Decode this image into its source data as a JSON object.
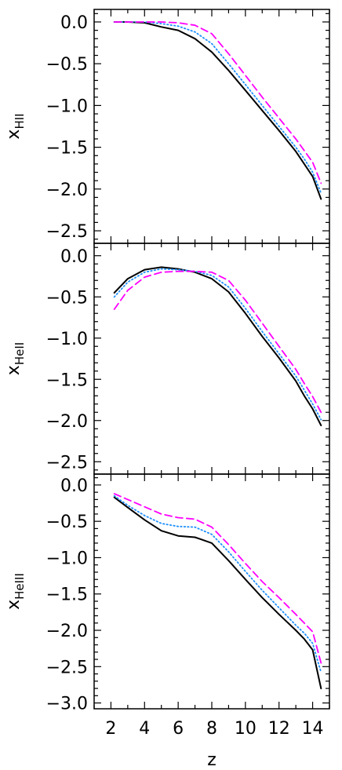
{
  "chart_data": [
    {
      "type": "line",
      "ylabel": "x",
      "ylabel_subscript": "HII",
      "ylim": [
        -2.65,
        0.15
      ],
      "yticks": [
        0.0,
        -0.5,
        -1.0,
        -1.5,
        -2.0,
        -2.5
      ],
      "ytick_labels": [
        "0.0",
        "−0.5",
        "−1.0",
        "−1.5",
        "−2.0",
        "−2.5"
      ],
      "series": [
        {
          "style": "solid",
          "color": "#000000",
          "x": [
            2.2,
            3,
            4,
            5,
            6,
            7,
            8,
            9,
            10,
            11,
            12,
            13,
            13.5,
            14,
            14.5
          ],
          "y": [
            0.0,
            0.0,
            -0.01,
            -0.06,
            -0.1,
            -0.2,
            -0.36,
            -0.58,
            -0.82,
            -1.06,
            -1.3,
            -1.55,
            -1.7,
            -1.85,
            -2.12
          ]
        },
        {
          "style": "dotted",
          "color": "#1e90ff",
          "x": [
            2.2,
            3,
            4,
            5,
            6,
            7,
            8,
            9,
            10,
            11,
            12,
            13,
            13.5,
            14,
            14.5
          ],
          "y": [
            0.0,
            0.0,
            0.0,
            -0.02,
            -0.05,
            -0.12,
            -0.26,
            -0.5,
            -0.75,
            -1.0,
            -1.25,
            -1.5,
            -1.64,
            -1.8,
            -2.05
          ]
        },
        {
          "style": "dashed",
          "color": "#ff00ff",
          "x": [
            2.2,
            3,
            4,
            5,
            6,
            7,
            8,
            9,
            10,
            11,
            12,
            13,
            13.5,
            14,
            14.5
          ],
          "y": [
            0.0,
            0.0,
            0.0,
            0.0,
            -0.01,
            -0.04,
            -0.14,
            -0.38,
            -0.64,
            -0.9,
            -1.15,
            -1.4,
            -1.54,
            -1.68,
            -1.93
          ]
        }
      ]
    },
    {
      "type": "line",
      "ylabel": "x",
      "ylabel_subscript": "HeII",
      "ylim": [
        -2.65,
        0.15
      ],
      "yticks": [
        0.0,
        -0.5,
        -1.0,
        -1.5,
        -2.0,
        -2.5
      ],
      "ytick_labels": [
        "0.0",
        "−0.5",
        "−1.0",
        "−1.5",
        "−2.0",
        "−2.5"
      ],
      "series": [
        {
          "style": "solid",
          "color": "#000000",
          "x": [
            2.2,
            3,
            4,
            5,
            6,
            7,
            8,
            9,
            10,
            11,
            12,
            13,
            13.5,
            14,
            14.5
          ],
          "y": [
            -0.45,
            -0.28,
            -0.17,
            -0.14,
            -0.16,
            -0.2,
            -0.28,
            -0.44,
            -0.7,
            -0.98,
            -1.24,
            -1.52,
            -1.7,
            -1.86,
            -2.06
          ]
        },
        {
          "style": "dotted",
          "color": "#1e90ff",
          "x": [
            2.2,
            3,
            4,
            5,
            6,
            7,
            8,
            9,
            10,
            11,
            12,
            13,
            13.5,
            14,
            14.5
          ],
          "y": [
            -0.5,
            -0.32,
            -0.2,
            -0.16,
            -0.17,
            -0.19,
            -0.24,
            -0.38,
            -0.64,
            -0.92,
            -1.19,
            -1.46,
            -1.63,
            -1.8,
            -1.99
          ]
        },
        {
          "style": "dashed",
          "color": "#ff00ff",
          "x": [
            2.2,
            3,
            4,
            5,
            6,
            7,
            8,
            9,
            10,
            11,
            12,
            13,
            13.5,
            14,
            14.5
          ],
          "y": [
            -0.65,
            -0.42,
            -0.26,
            -0.2,
            -0.19,
            -0.19,
            -0.2,
            -0.3,
            -0.54,
            -0.82,
            -1.1,
            -1.38,
            -1.55,
            -1.71,
            -1.9
          ]
        }
      ]
    },
    {
      "type": "line",
      "xlabel": "z",
      "ylabel": "x",
      "ylabel_subscript": "HeIII",
      "xlim": [
        1,
        15
      ],
      "xticks": [
        2,
        4,
        6,
        8,
        10,
        12,
        14
      ],
      "ylim": [
        -3.08,
        0.15
      ],
      "yticks": [
        0.0,
        -0.5,
        -1.0,
        -1.5,
        -2.0,
        -2.5,
        -3.0
      ],
      "ytick_labels": [
        "0.0",
        "−0.5",
        "−1.0",
        "−1.5",
        "−2.0",
        "−2.5",
        "−3.0"
      ],
      "series": [
        {
          "style": "solid",
          "color": "#000000",
          "x": [
            2.2,
            3,
            4,
            5,
            6,
            7,
            8,
            9,
            10,
            11,
            12,
            13,
            13.5,
            14,
            14.5
          ],
          "y": [
            -0.17,
            -0.31,
            -0.48,
            -0.63,
            -0.7,
            -0.72,
            -0.8,
            -1.04,
            -1.3,
            -1.55,
            -1.78,
            -2.0,
            -2.12,
            -2.27,
            -2.8
          ]
        },
        {
          "style": "dotted",
          "color": "#1e90ff",
          "x": [
            2.2,
            3,
            4,
            5,
            6,
            7,
            8,
            9,
            10,
            11,
            12,
            13,
            13.5,
            14,
            14.5
          ],
          "y": [
            -0.15,
            -0.28,
            -0.42,
            -0.53,
            -0.57,
            -0.58,
            -0.68,
            -0.92,
            -1.19,
            -1.45,
            -1.69,
            -1.93,
            -2.04,
            -2.18,
            -2.58
          ]
        },
        {
          "style": "dashed",
          "color": "#ff00ff",
          "x": [
            2.2,
            3,
            4,
            5,
            6,
            7,
            8,
            9,
            10,
            11,
            12,
            13,
            13.5,
            14,
            14.5
          ],
          "y": [
            -0.12,
            -0.2,
            -0.3,
            -0.4,
            -0.45,
            -0.47,
            -0.58,
            -0.82,
            -1.08,
            -1.33,
            -1.55,
            -1.78,
            -1.9,
            -2.02,
            -2.45
          ]
        }
      ]
    }
  ]
}
